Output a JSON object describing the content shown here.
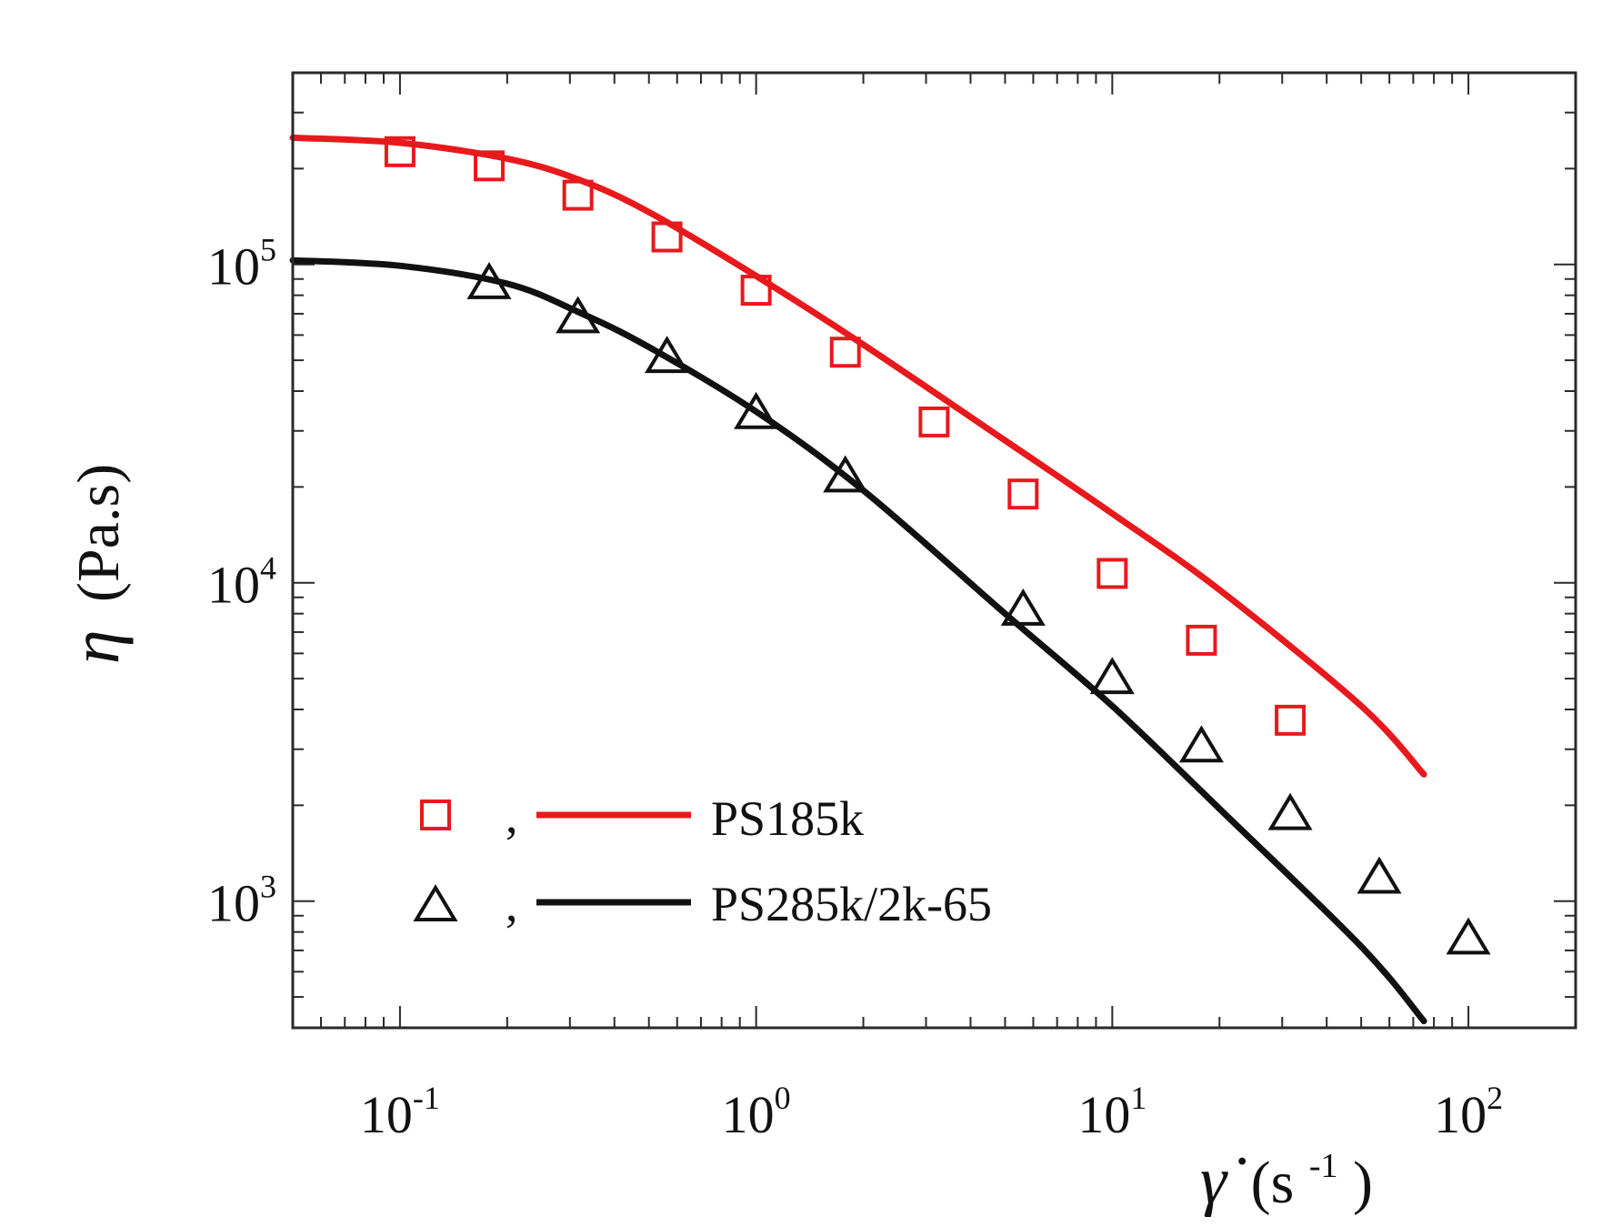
{
  "chart_data": {
    "type": "scatter",
    "xscale": "log",
    "yscale": "log",
    "xlim": [
      0.05,
      200
    ],
    "ylim": [
      400,
      400000
    ],
    "xlabel": {
      "symbol": "γ̇",
      "unit_base": "(s",
      "unit_exp": "-1",
      "unit_close": ")"
    },
    "ylabel": {
      "symbol": "η",
      "unit": "(Pa.s)"
    },
    "xticks": [
      {
        "value": 0.1,
        "base": "10",
        "exp": "-1"
      },
      {
        "value": 1,
        "base": "10",
        "exp": "0"
      },
      {
        "value": 10,
        "base": "10",
        "exp": "1"
      },
      {
        "value": 100,
        "base": "10",
        "exp": "2"
      }
    ],
    "yticks": [
      {
        "value": 1000,
        "base": "10",
        "exp": "3"
      },
      {
        "value": 10000,
        "base": "10",
        "exp": "4"
      },
      {
        "value": 100000,
        "base": "10",
        "exp": "5"
      }
    ],
    "grid": false,
    "legend_position": "bottom-left",
    "series": [
      {
        "name": "PS185k",
        "marker": "square",
        "color": "#e8191d",
        "points": [
          {
            "x": 0.1,
            "y": 226000
          },
          {
            "x": 0.178,
            "y": 204000
          },
          {
            "x": 0.316,
            "y": 165000
          },
          {
            "x": 0.562,
            "y": 122000
          },
          {
            "x": 1.0,
            "y": 83000
          },
          {
            "x": 1.78,
            "y": 53000
          },
          {
            "x": 3.16,
            "y": 32000
          },
          {
            "x": 5.62,
            "y": 19000
          },
          {
            "x": 10.0,
            "y": 10700
          },
          {
            "x": 17.8,
            "y": 6600
          },
          {
            "x": 31.6,
            "y": 3700
          }
        ],
        "fit": [
          {
            "x": 0.05,
            "y": 250000
          },
          {
            "x": 0.1,
            "y": 241000
          },
          {
            "x": 0.2,
            "y": 215000
          },
          {
            "x": 0.316,
            "y": 185000
          },
          {
            "x": 0.5,
            "y": 146000
          },
          {
            "x": 1.0,
            "y": 92000
          },
          {
            "x": 2.0,
            "y": 56000
          },
          {
            "x": 5.0,
            "y": 28000
          },
          {
            "x": 10.0,
            "y": 16500
          },
          {
            "x": 20.0,
            "y": 9500
          },
          {
            "x": 50.0,
            "y": 4100
          },
          {
            "x": 75.0,
            "y": 2500
          }
        ]
      },
      {
        "name": "PS285k/2k-65",
        "marker": "triangle",
        "color": "#111111",
        "points": [
          {
            "x": 0.178,
            "y": 87000
          },
          {
            "x": 0.316,
            "y": 68000
          },
          {
            "x": 0.562,
            "y": 51000
          },
          {
            "x": 1.0,
            "y": 34000
          },
          {
            "x": 1.78,
            "y": 21500
          },
          {
            "x": 5.62,
            "y": 8200
          },
          {
            "x": 10.0,
            "y": 5000
          },
          {
            "x": 17.8,
            "y": 3050
          },
          {
            "x": 31.6,
            "y": 1870
          },
          {
            "x": 56.2,
            "y": 1180
          },
          {
            "x": 100.0,
            "y": 760
          }
        ],
        "fit": [
          {
            "x": 0.05,
            "y": 103000
          },
          {
            "x": 0.1,
            "y": 99000
          },
          {
            "x": 0.2,
            "y": 87000
          },
          {
            "x": 0.316,
            "y": 71000
          },
          {
            "x": 0.5,
            "y": 55000
          },
          {
            "x": 1.0,
            "y": 34500
          },
          {
            "x": 2.0,
            "y": 19500
          },
          {
            "x": 5.0,
            "y": 8000
          },
          {
            "x": 10.0,
            "y": 4100
          },
          {
            "x": 20.0,
            "y": 1950
          },
          {
            "x": 50.0,
            "y": 720
          },
          {
            "x": 75.0,
            "y": 420
          }
        ]
      }
    ],
    "legend": [
      {
        "series": 0,
        "separator": ",",
        "label": "PS185k"
      },
      {
        "series": 1,
        "separator": ",",
        "label": "PS285k/2k-65"
      }
    ]
  }
}
